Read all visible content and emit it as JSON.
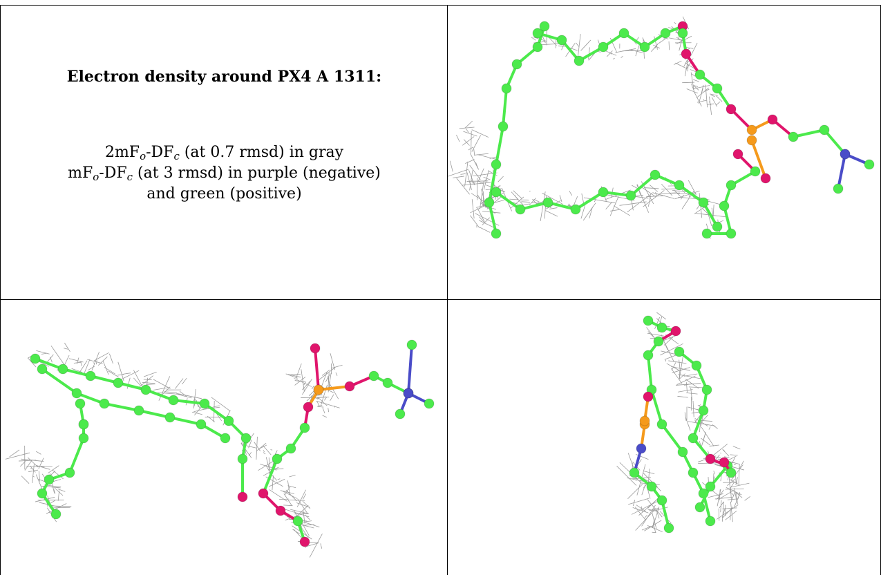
{
  "title": "Electron density around PX4 A 1311:",
  "legend": {
    "line1_pre": "2mF",
    "line1_sub1": "o",
    "line1_mid": "-DF",
    "line1_sub2": "c",
    "line1_post": " (at 0.7 rmsd) in gray",
    "line2_pre": "mF",
    "line2_sub1": "o",
    "line2_mid": "-DF",
    "line2_sub2": "c",
    "line2_post": " (at 3 rmsd) in purple (negative)",
    "line3": "and green (positive)"
  },
  "colors": {
    "carbon": "#4cea4c",
    "oxygen": "#e0156c",
    "phosphorus": "#f59a1c",
    "nitrogen": "#4a4cc8",
    "mesh": "#9a9a9a",
    "border": "#000000"
  },
  "panels": [
    {
      "name": "view-1",
      "image": "electron-density-mesh-ball-and-stick"
    },
    {
      "name": "view-2",
      "image": "electron-density-mesh-ball-and-stick"
    },
    {
      "name": "view-3",
      "image": "electron-density-mesh-ball-and-stick"
    }
  ]
}
